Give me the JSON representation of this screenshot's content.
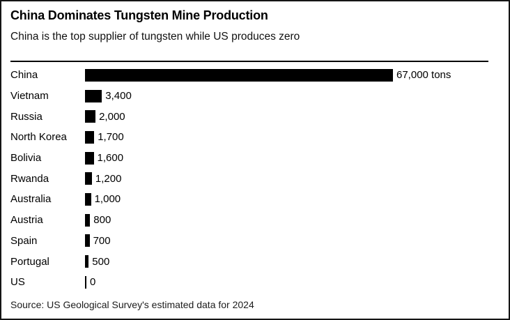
{
  "header": {
    "title": "China Dominates Tungsten Mine Production",
    "subtitle": "China is the top supplier of tungsten while US produces zero"
  },
  "chart_data": {
    "type": "bar",
    "orientation": "horizontal",
    "title": "China Dominates Tungsten Mine Production",
    "subtitle": "China is the top supplier of tungsten while US produces zero",
    "categories": [
      "China",
      "Vietnam",
      "Russia",
      "North Korea",
      "Bolivia",
      "Rwanda",
      "Australia",
      "Austria",
      "Spain",
      "Portugal",
      "US"
    ],
    "values": [
      67000,
      3400,
      2000,
      1700,
      1600,
      1200,
      1000,
      800,
      700,
      500,
      0
    ],
    "value_labels": [
      "67,000 tons",
      "3,400",
      "2,000",
      "1,700",
      "1,600",
      "1,200",
      "1,000",
      "800",
      "700",
      "500",
      "0"
    ],
    "unit": "tons",
    "xlim": [
      0,
      67000
    ],
    "grid": false,
    "legend": false,
    "bar_color": "#000000"
  },
  "footer": {
    "source": "Source: US Geological Survey's estimated data for 2024"
  },
  "colors": {
    "bar": "#000000",
    "text": "#000000",
    "border": "#141414",
    "background": "#ffffff"
  }
}
